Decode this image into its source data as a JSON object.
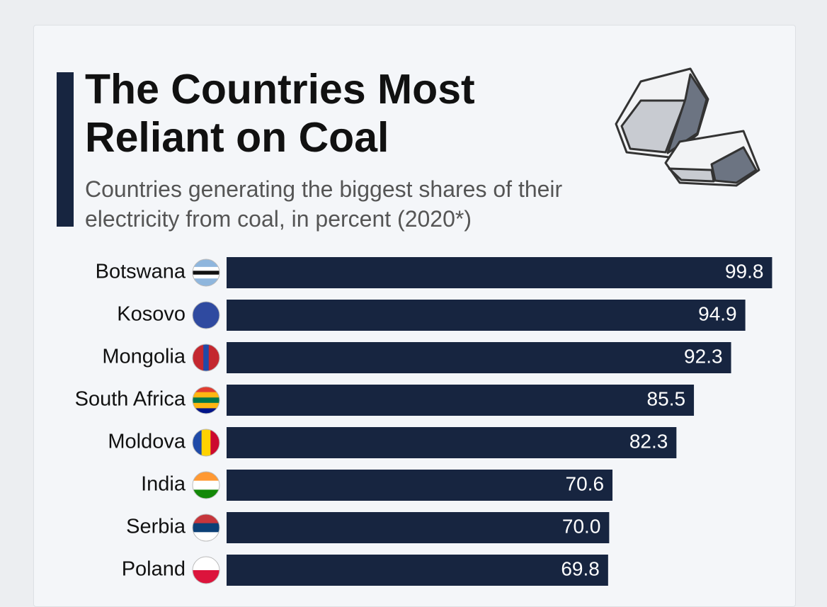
{
  "chart_data": {
    "type": "bar",
    "orientation": "horizontal",
    "title": "The Countries Most Reliant on Coal",
    "subtitle": "Countries generating the biggest shares of their electricity from coal, in percent (2020*)",
    "categories": [
      "Botswana",
      "Kosovo",
      "Mongolia",
      "South Africa",
      "Moldova",
      "India",
      "Serbia",
      "Poland"
    ],
    "values": [
      99.8,
      94.9,
      92.3,
      85.5,
      82.3,
      70.6,
      70.0,
      69.8
    ],
    "value_labels": [
      "99.8",
      "94.9",
      "92.3",
      "85.5",
      "82.3",
      "70.6",
      "70.0",
      "69.8"
    ],
    "color": "#172540",
    "xlim": [
      0,
      100
    ]
  }
}
